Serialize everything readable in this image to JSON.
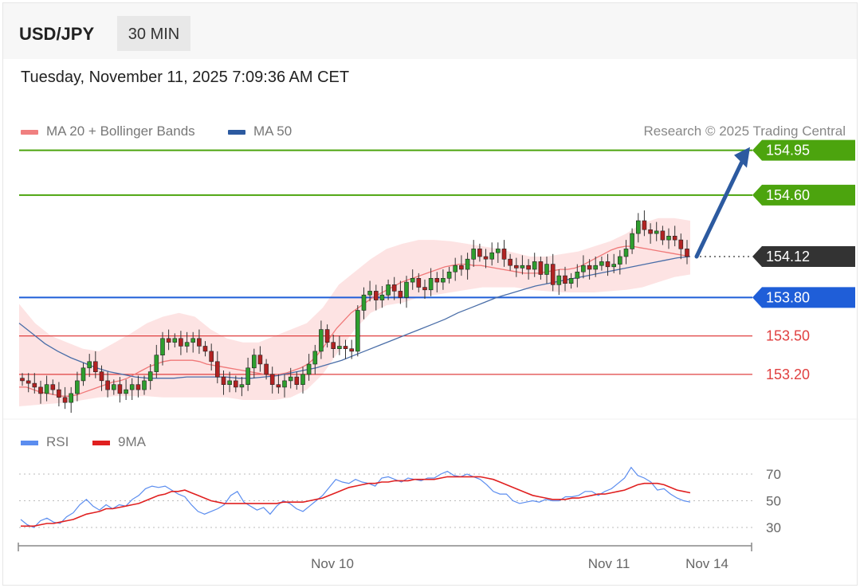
{
  "header": {
    "symbol": "USD/JPY",
    "timeframe_label": "30 MIN"
  },
  "date_text": "Tuesday, November 11, 2025 7:09:36 AM CET",
  "legend": {
    "ma20_label": "MA 20 + Bollinger Bands",
    "ma50_label": "MA 50",
    "ma20_color": "#f08080",
    "ma50_color": "#2c5aa0",
    "credit": "Research © 2025 Trading Central"
  },
  "rsi_legend": {
    "rsi_label": "RSI",
    "ma_label": "9MA",
    "rsi_color": "#5b8def",
    "ma_color": "#e02020"
  },
  "chart_data": [
    {
      "type": "candlestick",
      "title": "USD/JPY",
      "timeframe": "30 MIN",
      "ylim": [
        153.08,
        155.0
      ],
      "x_ticks": [
        "Nov 10",
        "Nov 11",
        "Nov 14"
      ],
      "levels": [
        {
          "value": 154.95,
          "label": "154.95",
          "color": "#4ca40e",
          "kind": "resistance"
        },
        {
          "value": 154.6,
          "label": "154.60",
          "color": "#4ca40e",
          "kind": "resistance"
        },
        {
          "value": 154.12,
          "label": "154.12",
          "color": "#333333",
          "kind": "last"
        },
        {
          "value": 153.8,
          "label": "153.80",
          "color": "#1f5ed8",
          "kind": "pivot"
        },
        {
          "value": 153.5,
          "label": "153.50",
          "color": "#e04040",
          "kind": "support"
        },
        {
          "value": 153.2,
          "label": "153.20",
          "color": "#e04040",
          "kind": "support"
        }
      ],
      "projection": {
        "from": 154.12,
        "to": 154.95
      },
      "closes": [
        153.15,
        153.13,
        153.1,
        153.05,
        153.12,
        153.08,
        153.02,
        152.98,
        153.05,
        153.15,
        153.25,
        153.3,
        153.22,
        153.15,
        153.08,
        153.12,
        153.05,
        153.08,
        153.12,
        153.08,
        153.15,
        153.22,
        153.35,
        153.48,
        153.45,
        153.48,
        153.42,
        153.45,
        153.48,
        153.42,
        153.38,
        153.3,
        153.18,
        153.12,
        153.15,
        153.1,
        153.12,
        153.25,
        153.35,
        153.28,
        153.2,
        153.12,
        153.1,
        153.15,
        153.18,
        153.12,
        153.2,
        153.28,
        153.38,
        153.55,
        153.45,
        153.4,
        153.42,
        153.4,
        153.38,
        153.7,
        153.82,
        153.85,
        153.78,
        153.82,
        153.9,
        153.85,
        153.8,
        153.92,
        153.95,
        153.88,
        153.86,
        153.95,
        153.92,
        153.95,
        154.0,
        154.05,
        154.02,
        154.1,
        154.18,
        154.12,
        154.1,
        154.15,
        154.18,
        154.1,
        154.05,
        154.03,
        154.05,
        154.02,
        154.08,
        153.98,
        154.06,
        153.9,
        153.97,
        153.91,
        153.95,
        154.0,
        154.05,
        154.02,
        154.05,
        154.08,
        154.04,
        154.06,
        154.12,
        154.18,
        154.3,
        154.4,
        154.33,
        154.3,
        154.32,
        154.25,
        154.28,
        154.25,
        154.18,
        154.12
      ],
      "ma20": [
        153.1,
        153.1,
        153.08,
        153.06,
        153.05,
        153.04,
        153.03,
        153.03,
        153.04,
        153.06,
        153.08,
        153.1,
        153.12,
        153.14,
        153.15,
        153.17,
        153.2,
        153.23,
        153.26,
        153.28,
        153.3,
        153.31,
        153.31,
        153.31,
        153.31,
        153.3,
        153.28,
        153.27,
        153.26,
        153.25,
        153.24,
        153.23,
        153.22,
        153.21,
        153.2,
        153.19,
        153.2,
        153.21,
        153.23,
        153.25,
        153.28,
        153.33,
        153.4,
        153.48,
        153.56,
        153.62,
        153.68,
        153.72,
        153.76,
        153.8,
        153.83,
        153.86,
        153.89,
        153.92,
        153.94,
        153.96,
        153.98,
        154.0,
        154.02,
        154.04,
        154.05,
        154.06,
        154.06,
        154.05,
        154.05,
        154.04,
        154.03,
        154.02,
        154.01,
        154.0,
        153.99,
        153.99,
        153.99,
        154.0,
        154.01,
        154.02,
        154.02,
        154.03,
        154.05,
        154.08,
        154.11,
        154.14,
        154.17,
        154.19,
        154.2,
        154.2,
        154.19,
        154.18,
        154.17,
        154.16,
        154.15,
        154.14,
        154.13,
        154.12
      ],
      "ma50": [
        153.6,
        153.52,
        153.44,
        153.38,
        153.33,
        153.29,
        153.25,
        153.22,
        153.2,
        153.18,
        153.17,
        153.17,
        153.17,
        153.18,
        153.18,
        153.18,
        153.18,
        153.17,
        153.17,
        153.18,
        153.19,
        153.21,
        153.23,
        153.25,
        153.28,
        153.31,
        153.35,
        153.39,
        153.43,
        153.47,
        153.51,
        153.55,
        153.59,
        153.63,
        153.68,
        153.72,
        153.76,
        153.8,
        153.83,
        153.86,
        153.89,
        153.91,
        153.93,
        153.95,
        153.97,
        153.99,
        154.01,
        154.03,
        154.05,
        154.07,
        154.09,
        154.11,
        154.12
      ],
      "bb_upper": [
        153.75,
        153.6,
        153.5,
        153.45,
        153.4,
        153.38,
        153.45,
        153.52,
        153.6,
        153.65,
        153.68,
        153.65,
        153.55,
        153.48,
        153.45,
        153.45,
        153.5,
        153.55,
        153.6,
        153.72,
        153.9,
        154.0,
        154.1,
        154.18,
        154.22,
        154.25,
        154.25,
        154.24,
        154.22,
        154.2,
        154.18,
        154.15,
        154.12,
        154.12,
        154.14,
        154.16,
        154.2,
        154.24,
        154.3,
        154.38,
        154.42,
        154.42,
        154.4
      ],
      "bb_lower": [
        152.95,
        152.96,
        152.97,
        152.98,
        153.0,
        153.02,
        153.03,
        153.03,
        153.03,
        153.02,
        153.02,
        153.02,
        153.02,
        153.02,
        153.0,
        153.0,
        153.0,
        153.02,
        153.08,
        153.2,
        153.38,
        153.55,
        153.68,
        153.74,
        153.76,
        153.8,
        153.82,
        153.84,
        153.86,
        153.88,
        153.88,
        153.88,
        153.86,
        153.85,
        153.84,
        153.84,
        153.84,
        153.85,
        153.86,
        153.88,
        153.92,
        153.96,
        153.98
      ]
    },
    {
      "type": "line",
      "title": "RSI",
      "ylim": [
        20,
        80
      ],
      "y_ticks": [
        30,
        50,
        70
      ],
      "series": [
        {
          "name": "RSI",
          "values": [
            36,
            32,
            30,
            35,
            37,
            34,
            33,
            38,
            41,
            47,
            51,
            46,
            43,
            47,
            44,
            47,
            46,
            51,
            54,
            59,
            61,
            60,
            61,
            58,
            55,
            53,
            47,
            42,
            40,
            42,
            44,
            47,
            54,
            57,
            49,
            46,
            43,
            45,
            40,
            46,
            50,
            48,
            44,
            42,
            46,
            50,
            54,
            60,
            66,
            64,
            63,
            66,
            64,
            63,
            61,
            67,
            68,
            66,
            64,
            67,
            66,
            65,
            67,
            67,
            70,
            72,
            69,
            68,
            70,
            68,
            66,
            62,
            57,
            55,
            55,
            50,
            48,
            49,
            50,
            49,
            51,
            50,
            50,
            53,
            53,
            54,
            57,
            57,
            54,
            57,
            59,
            63,
            67,
            75,
            69,
            67,
            64,
            58,
            59,
            55,
            52,
            50,
            49
          ]
        },
        {
          "name": "9MA",
          "values": [
            31,
            31,
            31,
            32,
            33,
            33,
            34,
            35,
            36,
            38,
            40,
            41,
            42,
            44,
            44,
            45,
            46,
            47,
            48,
            50,
            52,
            54,
            55,
            57,
            57,
            58,
            56,
            54,
            52,
            50,
            49,
            48,
            48,
            48,
            48,
            48,
            48,
            48,
            48,
            48,
            49,
            49,
            49,
            49,
            50,
            51,
            52,
            54,
            56,
            58,
            60,
            61,
            62,
            63,
            63,
            64,
            64,
            65,
            65,
            65,
            66,
            66,
            66,
            66,
            67,
            68,
            68,
            68,
            68,
            68,
            68,
            67,
            66,
            64,
            62,
            60,
            58,
            56,
            54,
            53,
            52,
            51,
            51,
            51,
            52,
            52,
            53,
            54,
            55,
            55,
            56,
            57,
            58,
            60,
            62,
            63,
            63,
            63,
            62,
            60,
            58,
            57,
            56
          ]
        }
      ]
    }
  ]
}
